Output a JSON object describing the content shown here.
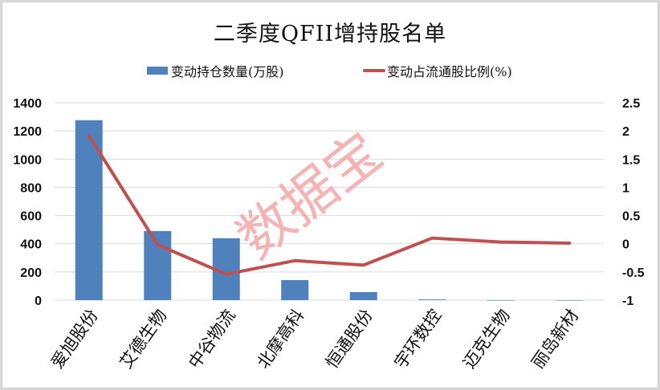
{
  "chart_data": {
    "type": "bar+line",
    "title": "二季度QFII增持股名单",
    "categories": [
      "爱旭股份",
      "艾德生物",
      "中谷物流",
      "北摩高科",
      "恒通股份",
      "宇环数控",
      "迈克生物",
      "丽岛新材"
    ],
    "series": [
      {
        "name": "变动持仓数量(万股)",
        "type": "bar",
        "axis": "left",
        "color": "#4f81bd",
        "values": [
          1276,
          490,
          439,
          142,
          57,
          5,
          0,
          0
        ]
      },
      {
        "name": "变动占流通股比例(%)",
        "type": "line",
        "axis": "right",
        "color": "#c0504d",
        "values": [
          1.92,
          -0.02,
          -0.54,
          -0.3,
          -0.38,
          0.1,
          0.03,
          0.01
        ]
      }
    ],
    "left_axis": {
      "ylim": [
        0,
        1400
      ],
      "ticks": [
        "0",
        "200",
        "400",
        "600",
        "800",
        "1000",
        "1200",
        "1400"
      ]
    },
    "right_axis": {
      "ylim": [
        -1,
        2.5
      ],
      "ticks": [
        "-1",
        "-0.5",
        "0",
        "0.5",
        "1",
        "1.5",
        "2",
        "2.5"
      ]
    },
    "grid": true,
    "legend_position": "top",
    "watermark": "数据宝"
  }
}
